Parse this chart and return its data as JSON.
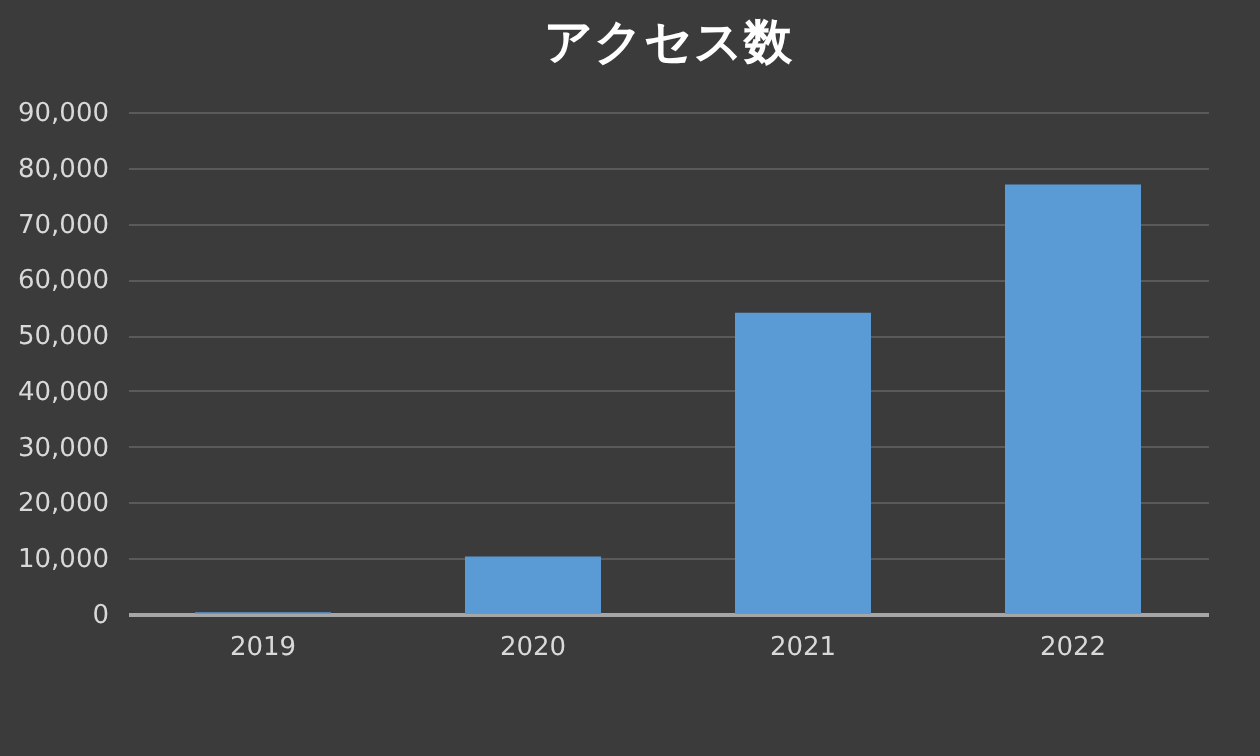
{
  "chart_data": {
    "type": "bar",
    "title": "アクセス数",
    "categories": [
      "2019",
      "2020",
      "2021",
      "2022"
    ],
    "values": [
      300,
      10300,
      54000,
      77000
    ],
    "color": "#5b9bd5",
    "ylim": [
      0,
      90000
    ],
    "yticks": [
      0,
      {
        "value": 10000,
        "label": "10,000"
      },
      {
        "value": 20000,
        "label": "20,000"
      },
      {
        "value": 30000,
        "label": "30,000"
      },
      {
        "value": 40000,
        "label": "40,000"
      },
      {
        "value": 50000,
        "label": "50,000"
      },
      {
        "value": 60000,
        "label": "60,000"
      },
      {
        "value": 70000,
        "label": "70,000"
      },
      {
        "value": 80000,
        "label": "80,000"
      },
      {
        "value": 90000,
        "label": "90,000"
      }
    ],
    "grid": "y"
  }
}
